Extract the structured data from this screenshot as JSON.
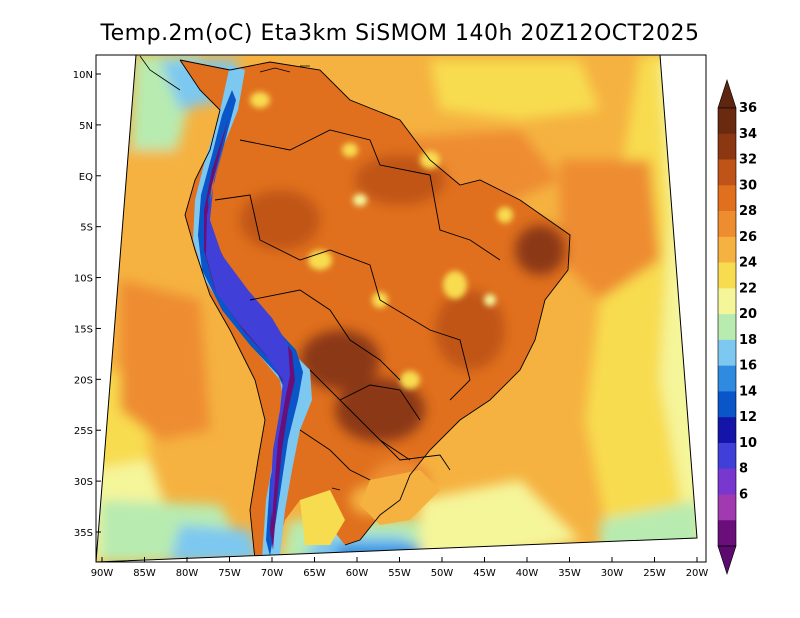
{
  "title": "Temp.2m(oC) Eta3km SiSMOM 140h 20Z12OCT2025",
  "map": {
    "lon_labels": [
      "90W",
      "85W",
      "80W",
      "75W",
      "70W",
      "65W",
      "60W",
      "55W",
      "50W",
      "45W",
      "40W",
      "35W",
      "30W",
      "25W",
      "20W"
    ],
    "lat_labels": [
      "10N",
      "5N",
      "EQ",
      "5S",
      "10S",
      "15S",
      "20S",
      "25S",
      "30S",
      "35S"
    ],
    "lon_range": [
      -90,
      -20
    ],
    "lat_range": [
      -38,
      10
    ],
    "ocean_color": "#f5b240",
    "land_color": "#e0701e",
    "border_color": "#000000"
  },
  "colorbar": {
    "labels": [
      "6",
      "8",
      "10",
      "12",
      "14",
      "16",
      "18",
      "20",
      "22",
      "24",
      "26",
      "28",
      "30",
      "32",
      "34",
      "36"
    ],
    "colors": [
      "#6a0f7a",
      "#a13ab0",
      "#7838d0",
      "#4040d8",
      "#1414a8",
      "#0a55c8",
      "#2e8be0",
      "#7dc8f0",
      "#b8ebb0",
      "#f5f59a",
      "#f8dc50",
      "#f5b240",
      "#ee8c30",
      "#e0701e",
      "#c05418",
      "#8b3712",
      "#6a2a10"
    ],
    "under_color": "#5c0a6e",
    "over_color": "#5e2510"
  }
}
